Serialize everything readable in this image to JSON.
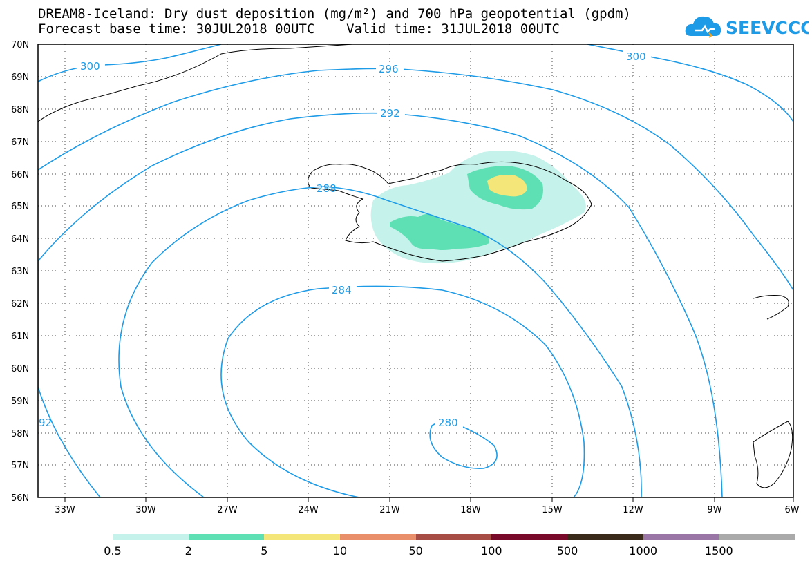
{
  "title": {
    "line1": "DREAM8-Iceland: Dry dust deposition (mg/m²) and 700 hPa geopotential (gpdm)",
    "line2": "Forecast base time: 30JUL2018 00UTC    Valid time: 31JUL2018 00UTC"
  },
  "logo": {
    "text": "SEEVCCC",
    "icon": "cloud-icon",
    "color": "#1e9be6"
  },
  "map": {
    "lon_range": [
      -34.5,
      -6
    ],
    "lat_range": [
      56,
      70
    ],
    "lat_labels": [
      "70N",
      "69N",
      "68N",
      "67N",
      "66N",
      "65N",
      "64N",
      "63N",
      "62N",
      "61N",
      "60N",
      "59N",
      "58N",
      "57N",
      "56N"
    ],
    "lon_labels": [
      "33W",
      "30W",
      "27W",
      "24W",
      "21W",
      "18W",
      "15W",
      "12W",
      "9W",
      "6W"
    ],
    "gridlines": "dotted",
    "contour_color": "#1e9be6",
    "contour_labels": [
      "300",
      "296",
      "300",
      "292",
      "288",
      "284",
      "280",
      "92"
    ]
  },
  "legend": {
    "labels": [
      "0.5",
      "2",
      "5",
      "10",
      "50",
      "100",
      "500",
      "1000",
      "1500"
    ],
    "colors": [
      "#c5f2ea",
      "#5ee0b4",
      "#f5e67a",
      "#e9906a",
      "#a84c46",
      "#7a0a2a",
      "#3a2a1a",
      "#9a76a6",
      "#aaaaaa"
    ]
  }
}
